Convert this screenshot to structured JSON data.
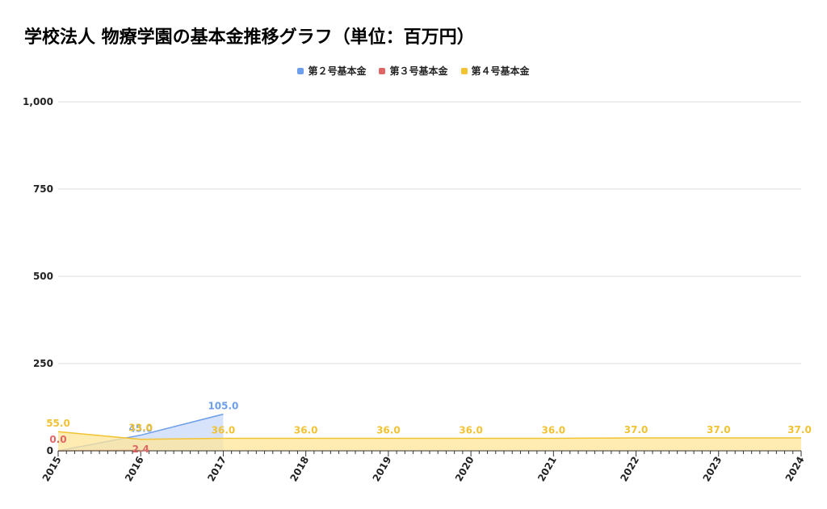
{
  "chart_data": {
    "type": "area",
    "title": "学校法人 物療学園の基本金推移グラフ（単位：百万円）",
    "categories": [
      "2015",
      "2016",
      "2017",
      "2018",
      "2019",
      "2020",
      "2021",
      "2022",
      "2023",
      "2024"
    ],
    "ylim": [
      0,
      1000
    ],
    "yticks": [
      0,
      250,
      500,
      750,
      1000
    ],
    "ytick_labels": [
      "0",
      "250",
      "500",
      "750",
      "1,000"
    ],
    "grid": true,
    "legend_position": "top",
    "series": [
      {
        "name": "第２号基本金",
        "color": "#6d9eeb",
        "fill": "#c9daf8",
        "values": [
          0,
          45.0,
          105.0,
          null,
          null,
          null,
          null,
          null,
          null,
          null
        ],
        "labels": [
          "",
          "45.0",
          "105.0",
          "",
          "",
          "",
          "",
          "",
          "",
          ""
        ]
      },
      {
        "name": "第３号基本金",
        "color": "#e06666",
        "fill": "#f4cccc",
        "values": [
          0,
          2.4,
          null,
          null,
          null,
          null,
          null,
          null,
          null,
          null
        ],
        "labels": [
          "0.0",
          "2.4",
          "",
          "",
          "",
          "",
          "",
          "",
          "",
          ""
        ]
      },
      {
        "name": "第４号基本金",
        "color": "#f1c232",
        "fill": "#ffe599",
        "values": [
          55.0,
          33.0,
          36.0,
          36.0,
          36.0,
          36.0,
          36.0,
          37.0,
          37.0,
          37.0
        ],
        "labels": [
          "55.0",
          "33.0",
          "36.0",
          "36.0",
          "36.0",
          "36.0",
          "36.0",
          "37.0",
          "37.0",
          "37.0"
        ]
      }
    ]
  }
}
